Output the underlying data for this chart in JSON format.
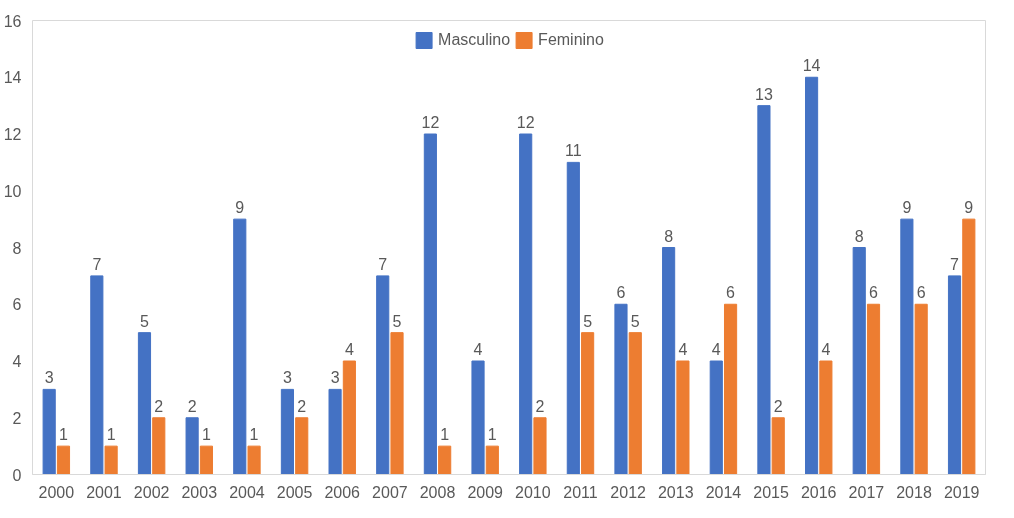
{
  "chart_data": {
    "type": "bar",
    "categories": [
      "2000",
      "2001",
      "2002",
      "2003",
      "2004",
      "2005",
      "2006",
      "2007",
      "2008",
      "2009",
      "2010",
      "2011",
      "2012",
      "2013",
      "2014",
      "2015",
      "2016",
      "2017",
      "2018",
      "2019"
    ],
    "series": [
      {
        "name": "Masculino",
        "color": "#4472c4",
        "values": [
          3,
          7,
          5,
          2,
          9,
          3,
          3,
          7,
          12,
          4,
          12,
          11,
          6,
          8,
          4,
          13,
          14,
          8,
          9,
          7
        ]
      },
      {
        "name": "Feminino",
        "color": "#ed7d31",
        "values": [
          1,
          1,
          2,
          1,
          1,
          2,
          4,
          5,
          1,
          1,
          2,
          5,
          5,
          4,
          6,
          2,
          4,
          6,
          6,
          9
        ]
      }
    ],
    "ylim": [
      0,
      16
    ],
    "yticks": [
      0,
      2,
      4,
      6,
      8,
      10,
      12,
      14,
      16
    ],
    "grid": false,
    "legend": "top",
    "data_labels": true
  }
}
